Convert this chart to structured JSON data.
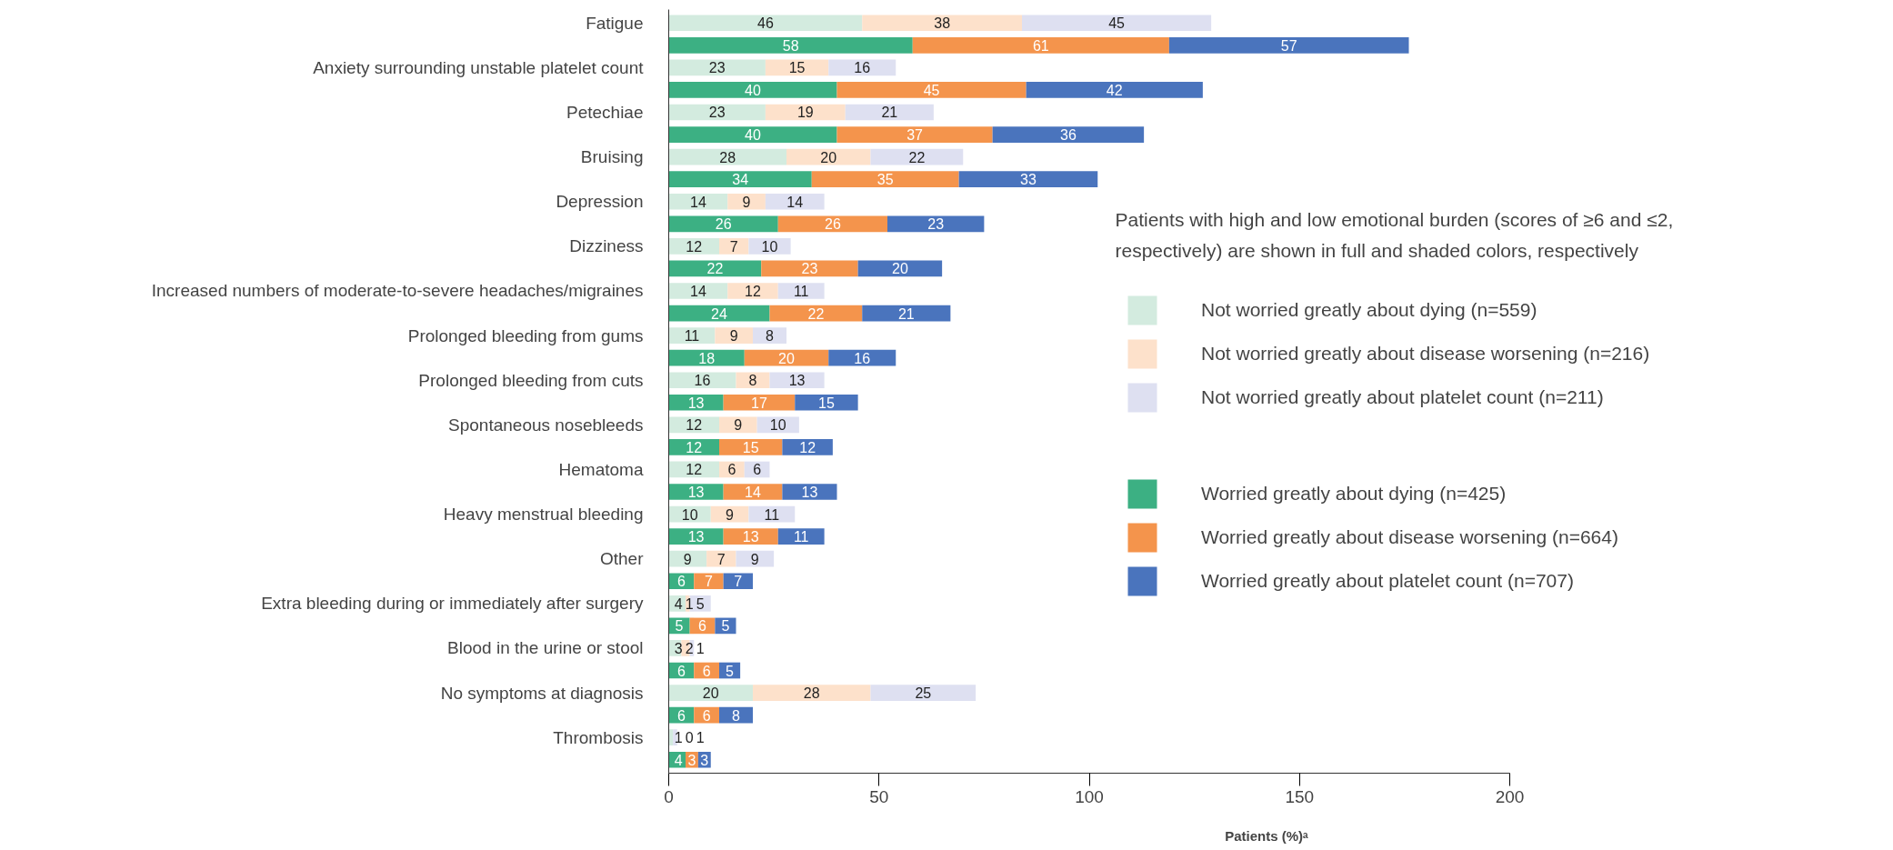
{
  "chart_data": {
    "type": "bar",
    "orientation": "horizontal",
    "stacked": true,
    "categories": [
      "Fatigue",
      null,
      "Anxiety surrounding unstable platelet count",
      null,
      "Petechiae",
      null,
      "Bruising",
      null,
      "Depression",
      null,
      "Dizziness",
      null,
      "Increased numbers of moderate-to-severe headaches/migraines",
      null,
      "Prolonged bleeding from gums",
      null,
      "Prolonged bleeding from cuts",
      null,
      "Spontaneous nosebleeds",
      null,
      "Hematoma",
      null,
      "Heavy menstrual bleeding",
      null,
      "Other",
      null,
      "Extra bleeding during or immediately after surgery",
      null,
      "Blood in the urine or stool",
      null,
      "No symptoms at diagnosis",
      null,
      "Thrombosis",
      null
    ],
    "series": [
      {
        "name": "Not worried greatly about dying (n=559)",
        "color": "#d3ebdf",
        "values": [
          46,
          null,
          23,
          null,
          23,
          null,
          28,
          null,
          14,
          null,
          12,
          null,
          14,
          null,
          11,
          null,
          16,
          null,
          12,
          null,
          12,
          null,
          10,
          null,
          9,
          null,
          4,
          null,
          3,
          null,
          20,
          null,
          1,
          null
        ]
      },
      {
        "name": "Not worried greatly about disease worsening (n=216)",
        "color": "#fde1cb",
        "values": [
          38,
          null,
          15,
          null,
          19,
          null,
          20,
          null,
          9,
          null,
          7,
          null,
          12,
          null,
          9,
          null,
          8,
          null,
          9,
          null,
          6,
          null,
          9,
          null,
          7,
          null,
          1,
          null,
          2,
          null,
          28,
          null,
          0,
          null
        ]
      },
      {
        "name": "Not worried greatly about platelet count (n=211)",
        "color": "#dee0f1",
        "values": [
          45,
          null,
          16,
          null,
          21,
          null,
          22,
          null,
          14,
          null,
          10,
          null,
          11,
          null,
          8,
          null,
          13,
          null,
          10,
          null,
          6,
          null,
          11,
          null,
          9,
          null,
          5,
          null,
          1,
          null,
          25,
          null,
          1,
          null
        ]
      },
      {
        "name": "Worried greatly about dying (n=425)",
        "color": "#3cb083",
        "values": [
          null,
          58,
          null,
          40,
          null,
          40,
          null,
          34,
          null,
          26,
          null,
          22,
          null,
          24,
          null,
          18,
          null,
          13,
          null,
          12,
          null,
          13,
          null,
          13,
          null,
          6,
          null,
          5,
          null,
          6,
          null,
          6,
          null,
          4
        ]
      },
      {
        "name": "Worried greatly about disease worsening (n=664)",
        "color": "#f4944c",
        "values": [
          null,
          61,
          null,
          45,
          null,
          37,
          null,
          35,
          null,
          26,
          null,
          23,
          null,
          22,
          null,
          20,
          null,
          17,
          null,
          15,
          null,
          14,
          null,
          13,
          null,
          7,
          null,
          6,
          null,
          6,
          null,
          6,
          null,
          3
        ]
      },
      {
        "name": "Worried greatly about platelet count (n=707)",
        "color": "#4a74bd",
        "values": [
          null,
          57,
          null,
          42,
          null,
          36,
          null,
          33,
          null,
          23,
          null,
          20,
          null,
          21,
          null,
          16,
          null,
          15,
          null,
          12,
          null,
          13,
          null,
          11,
          null,
          7,
          null,
          5,
          null,
          5,
          null,
          8,
          null,
          3
        ]
      }
    ],
    "xlim": [
      0,
      200
    ],
    "xticks": [
      0,
      50,
      100,
      150,
      200
    ],
    "xlabel": "Patients (%)ᵃ",
    "legend_title": "Patients with high and low emotional burden (scores of ≥6 and ≤2, respectively) are shown in full and shaded colors, respectively",
    "legend": "right",
    "data_labels": true,
    "grid": false
  }
}
